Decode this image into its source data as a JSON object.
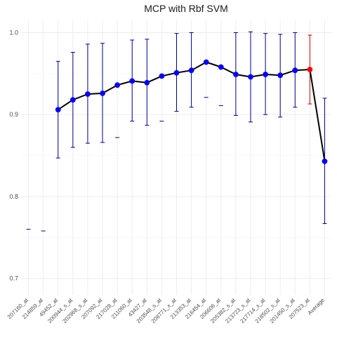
{
  "chart_data": {
    "type": "line",
    "title": "MCP with Rbf SVM",
    "xlabel": "",
    "ylabel": "",
    "ylim": [
      0.68,
      1.015
    ],
    "y_ticks": [
      0.7,
      0.8,
      0.9,
      1.0
    ],
    "y_tick_labels": [
      "0.7",
      "0.8",
      "0.9",
      "1.0"
    ],
    "grid": true,
    "colors": {
      "series": "#0000ff",
      "error_bar": "#00008b",
      "highlight": "#ff0000",
      "highlight_error_bar": "#cc0000",
      "line": "#000000"
    },
    "categories": [
      "207160_at",
      "214859_at",
      "49452_at",
      "200944_s_at",
      "202968_s_at",
      "207092_at",
      "217028_at",
      "211060_at",
      "43427_at",
      "203548_s_at",
      "208771_x_at",
      "213353_at",
      "216454_at",
      "206606_at",
      "205382_s_at",
      "213723_s_at",
      "217714_x_at",
      "218502_s_at",
      "201450_s_at",
      "207523_at",
      "Average"
    ],
    "series": [
      {
        "values": [
          null,
          null,
          0.906,
          0.918,
          0.925,
          0.926,
          0.936,
          0.941,
          0.939,
          0.947,
          0.951,
          0.954,
          0.964,
          0.958,
          0.949,
          0.946,
          0.949,
          0.948,
          0.954,
          0.955,
          0.843
        ],
        "upper": [
          0.76,
          0.758,
          0.965,
          0.976,
          0.986,
          0.987,
          0.872,
          0.991,
          0.992,
          0.892,
          0.999,
          1.0,
          0.921,
          0.911,
          1.0,
          1.001,
          0.999,
          0.998,
          1.0,
          0.997,
          0.92
        ],
        "lower": [
          null,
          null,
          0.847,
          0.86,
          0.865,
          0.866,
          null,
          0.892,
          0.887,
          null,
          0.904,
          0.909,
          null,
          null,
          0.899,
          0.891,
          0.9,
          0.897,
          0.909,
          0.913,
          0.767
        ],
        "highlight_index": 19
      }
    ]
  }
}
